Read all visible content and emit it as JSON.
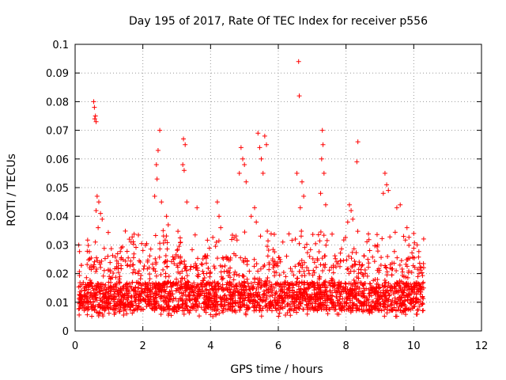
{
  "chart_data": {
    "type": "scatter",
    "title": "Day 195 of 2017, Rate Of TEC Index for receiver p556",
    "xlabel": "GPS time / hours",
    "ylabel": "ROTI / TECUs",
    "xlim": [
      0,
      12
    ],
    "ylim": [
      0,
      0.1
    ],
    "x_ticks": [
      0,
      2,
      4,
      6,
      8,
      10,
      12
    ],
    "x_tick_labels": [
      "0",
      "2",
      "4",
      "6",
      "8",
      "10",
      "12"
    ],
    "y_ticks": [
      0,
      0.01,
      0.02,
      0.03,
      0.04,
      0.05,
      0.06,
      0.07,
      0.08,
      0.09,
      0.1
    ],
    "y_tick_labels": [
      "0",
      "0.01",
      "0.02",
      "0.03",
      "0.04",
      "0.05",
      "0.06",
      "0.07",
      "0.08",
      "0.09",
      "0.1"
    ],
    "grid": true,
    "marker": "+",
    "marker_color": "#ff0000",
    "series": [
      {
        "name": "ROTI",
        "note": "dense band from ~0.1 h to ~10.3 h, mostly 0.005-0.03 TECU with notable outliers",
        "points": [
          [
            0.55,
            0.08
          ],
          [
            0.57,
            0.078
          ],
          [
            0.6,
            0.075
          ],
          [
            0.62,
            0.073
          ],
          [
            0.58,
            0.074
          ],
          [
            0.65,
            0.047
          ],
          [
            0.7,
            0.045
          ],
          [
            0.62,
            0.042
          ],
          [
            0.75,
            0.041
          ],
          [
            0.8,
            0.039
          ],
          [
            0.68,
            0.036
          ],
          [
            1.6,
            0.032
          ],
          [
            1.65,
            0.031
          ],
          [
            2.5,
            0.07
          ],
          [
            2.45,
            0.063
          ],
          [
            2.4,
            0.058
          ],
          [
            2.42,
            0.053
          ],
          [
            2.35,
            0.047
          ],
          [
            2.55,
            0.045
          ],
          [
            2.7,
            0.04
          ],
          [
            2.75,
            0.037
          ],
          [
            2.6,
            0.035
          ],
          [
            3.2,
            0.067
          ],
          [
            3.25,
            0.065
          ],
          [
            3.18,
            0.058
          ],
          [
            3.22,
            0.056
          ],
          [
            3.3,
            0.045
          ],
          [
            3.6,
            0.043
          ],
          [
            4.2,
            0.045
          ],
          [
            4.25,
            0.04
          ],
          [
            4.3,
            0.036
          ],
          [
            4.9,
            0.064
          ],
          [
            4.95,
            0.06
          ],
          [
            5.0,
            0.058
          ],
          [
            4.85,
            0.055
          ],
          [
            5.05,
            0.052
          ],
          [
            5.4,
            0.069
          ],
          [
            5.45,
            0.064
          ],
          [
            5.5,
            0.06
          ],
          [
            5.55,
            0.055
          ],
          [
            5.6,
            0.068
          ],
          [
            5.65,
            0.065
          ],
          [
            5.3,
            0.043
          ],
          [
            5.2,
            0.04
          ],
          [
            5.35,
            0.038
          ],
          [
            6.6,
            0.094
          ],
          [
            6.62,
            0.082
          ],
          [
            6.55,
            0.055
          ],
          [
            6.7,
            0.052
          ],
          [
            6.75,
            0.047
          ],
          [
            6.65,
            0.043
          ],
          [
            7.3,
            0.07
          ],
          [
            7.32,
            0.065
          ],
          [
            7.28,
            0.06
          ],
          [
            7.35,
            0.055
          ],
          [
            7.25,
            0.048
          ],
          [
            7.4,
            0.044
          ],
          [
            8.35,
            0.066
          ],
          [
            8.32,
            0.059
          ],
          [
            8.1,
            0.044
          ],
          [
            8.15,
            0.042
          ],
          [
            8.2,
            0.039
          ],
          [
            8.05,
            0.038
          ],
          [
            9.15,
            0.055
          ],
          [
            9.2,
            0.051
          ],
          [
            9.25,
            0.049
          ],
          [
            9.1,
            0.048
          ],
          [
            9.6,
            0.044
          ],
          [
            9.5,
            0.043
          ],
          [
            9.8,
            0.036
          ],
          [
            10.0,
            0.034
          ],
          [
            9.7,
            0.033
          ],
          [
            10.1,
            0.03
          ]
        ],
        "band": {
          "x_start": 0.1,
          "x_end": 10.3,
          "typical_min": 0.005,
          "typical_max": 0.03,
          "typical_center": 0.012
        }
      }
    ]
  }
}
